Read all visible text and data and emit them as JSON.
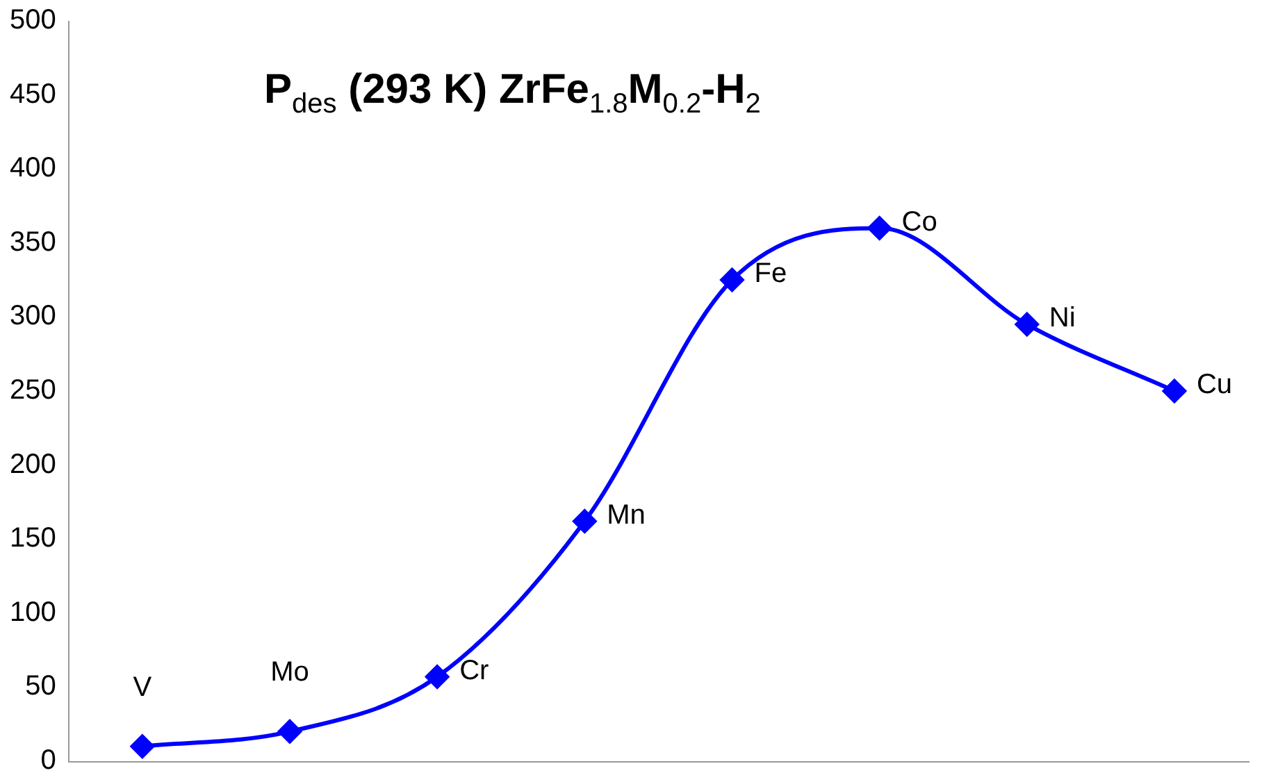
{
  "chart_data": {
    "type": "line",
    "title": "P$_{des}$  (293 K) ZrFe$_{1.8}$M$_{0.2}$-H$_{2}$",
    "categories": [
      null,
      null,
      null,
      null,
      null,
      null,
      null,
      null
    ],
    "values": [
      10,
      20,
      57,
      162,
      325,
      360,
      295,
      250
    ],
    "value_labels": [
      "V",
      "Mo",
      "Cr",
      "Mn",
      "Fe",
      "Co",
      "Ni",
      "Cu"
    ],
    "color": "#0000ff",
    "marker": "diamond",
    "line_style": "solid",
    "ylim": [
      0,
      500
    ],
    "yticks": [
      0,
      50,
      100,
      150,
      200,
      250,
      300,
      350,
      400,
      450,
      500
    ],
    "grid": false,
    "legend": false,
    "tick_labels": "y"
  }
}
